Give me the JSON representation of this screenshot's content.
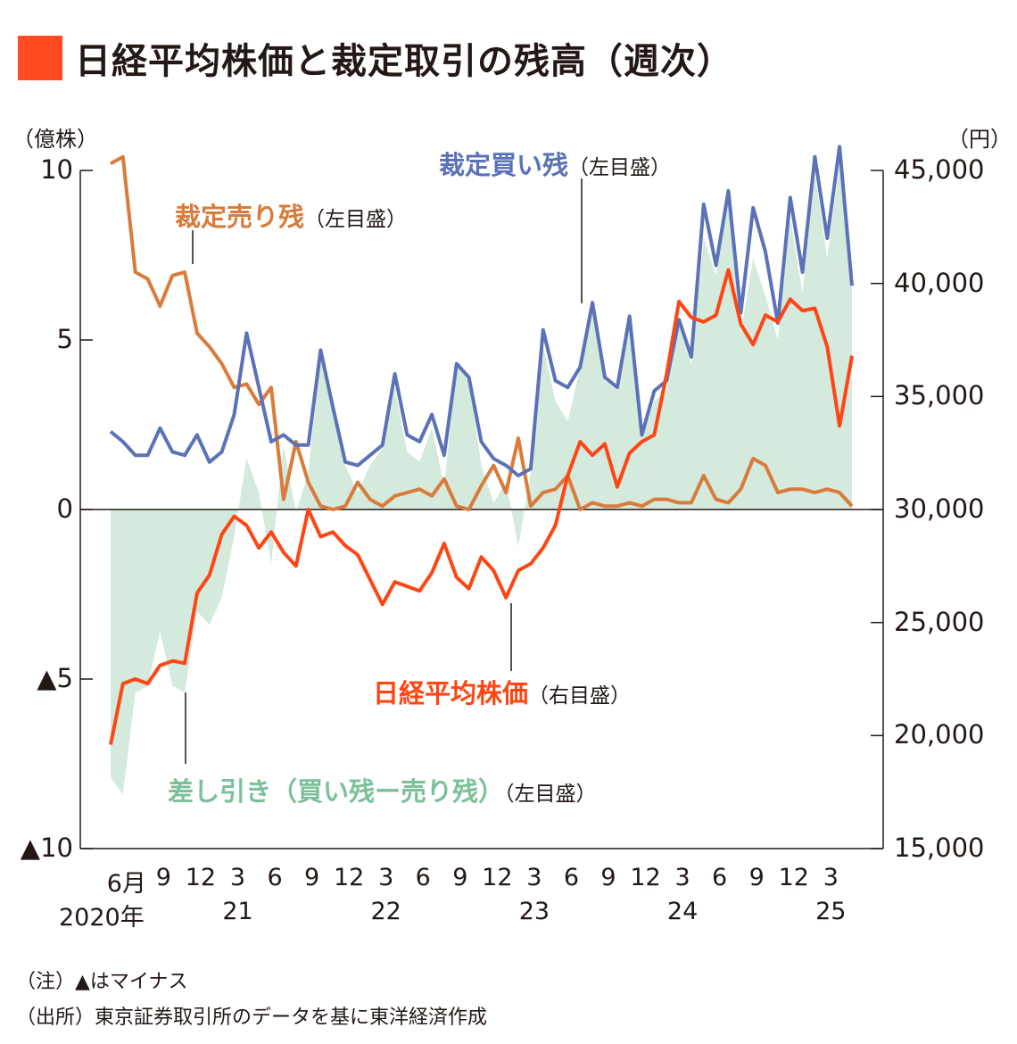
{
  "title": "日経平均株価と裁定取引の残高（週次）",
  "colors": {
    "title_square": "#ff4b1f",
    "buy": "#5b72b8",
    "sell": "#d97b3a",
    "nikkei": "#ff4513",
    "diff_fill": "#d3eadd",
    "diff_label": "#7cc09a",
    "axis": "#231815"
  },
  "notes": [
    "（注）▲はマイナス",
    "（出所）東京証券取引所のデータを基に東洋経済作成"
  ],
  "chart_data": {
    "type": "line",
    "title": "日経平均株価と裁定取引の残高（週次）",
    "left_axis": {
      "unit_label": "（億株）",
      "ylim": [
        -10,
        10
      ],
      "ticks": [
        10,
        5,
        0,
        -5,
        -10
      ],
      "tick_labels": [
        "10",
        "5",
        "0",
        "▲5",
        "▲10"
      ]
    },
    "right_axis": {
      "unit_label": "（円）",
      "ylim": [
        15000,
        45000
      ],
      "ticks": [
        45000,
        40000,
        35000,
        30000,
        25000,
        20000,
        15000
      ],
      "tick_labels": [
        "45,000",
        "40,000",
        "35,000",
        "30,000",
        "25,000",
        "20,000",
        "15,000"
      ]
    },
    "x_ticks": [
      {
        "month": "6月",
        "year": "2020年",
        "date": "2020-06"
      },
      {
        "month": "9",
        "year": "",
        "date": "2020-09"
      },
      {
        "month": "12",
        "year": "",
        "date": "2020-12"
      },
      {
        "month": "3",
        "year": "21",
        "date": "2021-03"
      },
      {
        "month": "6",
        "year": "",
        "date": "2021-06"
      },
      {
        "month": "9",
        "year": "",
        "date": "2021-09"
      },
      {
        "month": "12",
        "year": "",
        "date": "2021-12"
      },
      {
        "month": "3",
        "year": "22",
        "date": "2022-03"
      },
      {
        "month": "6",
        "year": "",
        "date": "2022-06"
      },
      {
        "month": "9",
        "year": "",
        "date": "2022-09"
      },
      {
        "month": "12",
        "year": "",
        "date": "2022-12"
      },
      {
        "month": "3",
        "year": "23",
        "date": "2023-03"
      },
      {
        "month": "6",
        "year": "",
        "date": "2023-06"
      },
      {
        "month": "9",
        "year": "",
        "date": "2023-09"
      },
      {
        "month": "12",
        "year": "",
        "date": "2023-12"
      },
      {
        "month": "3",
        "year": "24",
        "date": "2024-03"
      },
      {
        "month": "6",
        "year": "",
        "date": "2024-06"
      },
      {
        "month": "9",
        "year": "",
        "date": "2024-09"
      },
      {
        "month": "12",
        "year": "",
        "date": "2024-12"
      },
      {
        "month": "3",
        "year": "25",
        "date": "2025-03"
      }
    ],
    "start": "2020-05",
    "series": [
      {
        "name": "裁定売り残",
        "axis_note": "（左目盛）",
        "axis": "left",
        "values": [
          10.2,
          10.4,
          7.0,
          6.8,
          6.0,
          6.9,
          7.0,
          5.2,
          4.8,
          4.3,
          3.6,
          3.7,
          3.1,
          3.6,
          0.3,
          2.0,
          0.8,
          0.1,
          0.0,
          0.1,
          0.8,
          0.3,
          0.1,
          0.4,
          0.5,
          0.6,
          0.4,
          0.9,
          0.1,
          0.0,
          0.7,
          1.3,
          0.5,
          2.1,
          0.1,
          0.5,
          0.6,
          1.0,
          0.0,
          0.2,
          0.1,
          0.1,
          0.2,
          0.1,
          0.3,
          0.3,
          0.2,
          0.2,
          1.0,
          0.3,
          0.2,
          0.6,
          1.5,
          1.3,
          0.5,
          0.6,
          0.6,
          0.5,
          0.6,
          0.5,
          0.1
        ]
      },
      {
        "name": "裁定買い残",
        "axis_note": "（左目盛）",
        "axis": "left",
        "values": [
          2.3,
          2.0,
          1.6,
          1.6,
          2.4,
          1.7,
          1.6,
          2.2,
          1.4,
          1.7,
          2.8,
          5.2,
          3.6,
          2.0,
          2.2,
          1.9,
          1.9,
          4.7,
          3.0,
          1.4,
          1.3,
          1.6,
          1.9,
          4.0,
          2.2,
          2.0,
          2.8,
          1.6,
          4.3,
          3.9,
          2.0,
          1.5,
          1.3,
          1.0,
          1.2,
          5.3,
          3.8,
          3.6,
          4.2,
          6.1,
          3.9,
          3.6,
          5.7,
          2.2,
          3.5,
          3.8,
          5.6,
          4.5,
          9.0,
          7.2,
          9.4,
          5.8,
          8.9,
          7.6,
          5.5,
          9.2,
          7.0,
          10.4,
          8.0,
          10.7,
          6.6
        ]
      },
      {
        "name": "差し引き（買い残ー売り残）",
        "axis_note": "（左目盛）",
        "axis": "left",
        "type": "area",
        "values": [
          -7.9,
          -8.4,
          -5.4,
          -5.2,
          -3.6,
          -5.2,
          -5.4,
          -3.0,
          -3.4,
          -2.6,
          -0.8,
          1.5,
          0.5,
          -1.6,
          1.9,
          -0.1,
          1.1,
          4.6,
          3.0,
          1.3,
          0.5,
          1.3,
          1.8,
          3.6,
          1.7,
          1.4,
          2.4,
          0.7,
          4.2,
          3.9,
          1.3,
          0.2,
          0.8,
          -1.1,
          1.1,
          4.8,
          3.2,
          2.6,
          4.2,
          5.9,
          3.8,
          3.5,
          5.5,
          2.1,
          3.2,
          3.5,
          5.4,
          4.3,
          8.0,
          6.9,
          9.2,
          5.2,
          7.4,
          6.3,
          5.0,
          8.6,
          6.4,
          9.9,
          7.4,
          10.2,
          6.5
        ]
      },
      {
        "name": "日経平均株価",
        "axis_note": "（右目盛）",
        "axis": "right",
        "values": [
          19600,
          22300,
          22500,
          22300,
          23100,
          23300,
          23200,
          26300,
          27100,
          28900,
          29700,
          29300,
          28300,
          29000,
          28100,
          27500,
          30000,
          28800,
          29000,
          28400,
          28000,
          26900,
          25800,
          26800,
          26600,
          26400,
          27200,
          28500,
          27000,
          26500,
          27900,
          27300,
          26100,
          27300,
          27600,
          28300,
          29300,
          31500,
          33000,
          32400,
          32900,
          31000,
          32500,
          33000,
          33300,
          36000,
          39200,
          38500,
          38300,
          38600,
          40600,
          38200,
          37300,
          38600,
          38300,
          39300,
          38800,
          38900,
          37200,
          33700,
          36800
        ]
      }
    ]
  }
}
